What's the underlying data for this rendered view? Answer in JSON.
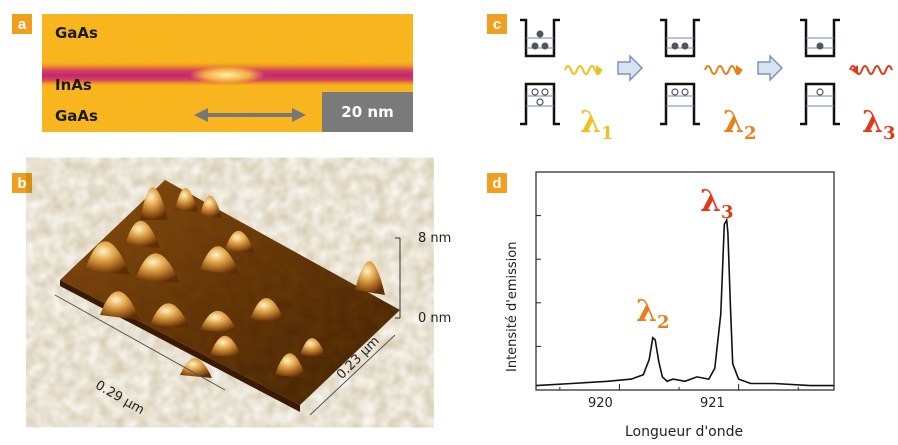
{
  "panels": {
    "a": {
      "tag": "a",
      "layer_top": "GaAs",
      "layer_mid": "InAs",
      "layer_bottom": "GaAs",
      "scale_bar": "20 nm"
    },
    "b": {
      "tag": "b",
      "z_top": "8 nm",
      "z_bottom": "0 nm",
      "x_axis": "0.29 µm",
      "y_axis": "0.23 µm"
    },
    "c": {
      "tag": "c",
      "steps": [
        {
          "lambda": "λ",
          "sub": "1",
          "color": "#f0c020"
        },
        {
          "lambda": "λ",
          "sub": "2",
          "color": "#e8801a"
        },
        {
          "lambda": "λ",
          "sub": "3",
          "color": "#e03a1a"
        }
      ]
    },
    "d": {
      "tag": "d",
      "peak_left": {
        "lambda": "λ",
        "sub": "2",
        "color": "#e8801a"
      },
      "peak_right": {
        "lambda": "λ",
        "sub": "3",
        "color": "#e03a1a"
      }
    }
  },
  "chart_data": {
    "type": "line",
    "xlabel": "Longueur d'onde",
    "ylabel": "Intensité d'emission",
    "x_ticks": [
      "920",
      "921"
    ],
    "xlim": [
      919.3,
      921.8
    ],
    "ylim": [
      0,
      1
    ],
    "grid": false,
    "series": [
      {
        "x": [
          919.3,
          919.6,
          919.9,
          920.1,
          920.2,
          920.25,
          920.28,
          920.3,
          920.33,
          920.36,
          920.4,
          920.45,
          920.55,
          920.65,
          920.75,
          920.8,
          920.85,
          920.88,
          920.9,
          920.91,
          920.93,
          920.95,
          921.0,
          921.1,
          921.3,
          921.6,
          921.8
        ],
        "y": [
          0.02,
          0.03,
          0.04,
          0.05,
          0.07,
          0.14,
          0.24,
          0.23,
          0.13,
          0.06,
          0.04,
          0.05,
          0.04,
          0.06,
          0.05,
          0.1,
          0.35,
          0.76,
          0.78,
          0.72,
          0.4,
          0.12,
          0.05,
          0.03,
          0.03,
          0.02,
          0.02
        ]
      }
    ]
  }
}
